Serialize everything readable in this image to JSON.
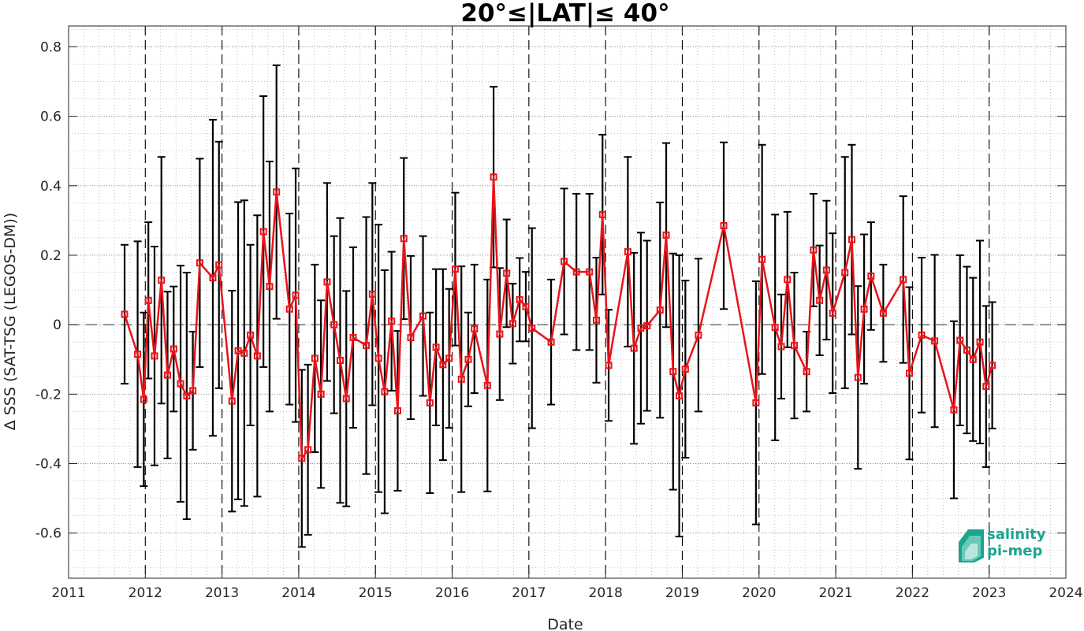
{
  "chart_data": {
    "type": "line",
    "title": "20°≤|LAT|≤ 40°",
    "xlabel": "Date",
    "ylabel": "Δ SSS (SAT-TSG (LEGOS-DM))",
    "xlim": [
      2011,
      2024
    ],
    "ylim": [
      -0.73,
      0.86
    ],
    "x_ticks": [
      "2011",
      "2012",
      "2013",
      "2014",
      "2015",
      "2016",
      "2017",
      "2018",
      "2019",
      "2020",
      "2021",
      "2022",
      "2023",
      "2024"
    ],
    "y_ticks": [
      "-0.6",
      "-0.4",
      "-0.2",
      "0",
      "0.2",
      "0.4",
      "0.6",
      "0.8"
    ],
    "grid": true,
    "year_dividers": [
      2012,
      2013,
      2014,
      2015,
      2016,
      2017,
      2018,
      2019,
      2020,
      2021,
      2022,
      2023
    ],
    "zero_line": 0,
    "colors": {
      "series": "#e8141b",
      "errorbar": "#000000",
      "grid": "#b4b4b4"
    },
    "series": [
      {
        "x": [
          2011.73,
          2011.9,
          2011.98,
          2012.04,
          2012.12,
          2012.21,
          2012.29,
          2012.37,
          2012.46,
          2012.54,
          2012.62,
          2012.71,
          2012.88,
          2012.96,
          2013.13,
          2013.21,
          2013.29,
          2013.37,
          2013.46,
          2013.54,
          2013.62,
          2013.71,
          2013.88,
          2013.96,
          2014.04,
          2014.12,
          2014.21,
          2014.29,
          2014.37,
          2014.46,
          2014.54,
          2014.62,
          2014.71,
          2014.88,
          2014.96,
          2015.04,
          2015.12,
          2015.21,
          2015.29,
          2015.37,
          2015.46,
          2015.62,
          2015.71,
          2015.79,
          2015.88,
          2015.96,
          2016.04,
          2016.12,
          2016.21,
          2016.29,
          2016.46,
          2016.54,
          2016.62,
          2016.71,
          2016.79,
          2016.88,
          2016.96,
          2017.04,
          2017.29,
          2017.46,
          2017.62,
          2017.79,
          2017.88,
          2017.96,
          2018.04,
          2018.29,
          2018.37,
          2018.46,
          2018.54,
          2018.71,
          2018.79,
          2018.88,
          2018.96,
          2019.04,
          2019.21,
          2019.54,
          2019.96,
          2020.04,
          2020.21,
          2020.29,
          2020.37,
          2020.46,
          2020.62,
          2020.71,
          2020.79,
          2020.88,
          2020.96,
          2021.12,
          2021.21,
          2021.29,
          2021.37,
          2021.46,
          2021.62,
          2021.88,
          2021.96,
          2022.12,
          2022.29,
          2022.54,
          2022.62,
          2022.71,
          2022.79,
          2022.88,
          2022.96,
          2023.04
        ],
        "y": [
          0.03,
          -0.085,
          -0.215,
          0.07,
          -0.09,
          0.128,
          -0.145,
          -0.07,
          -0.17,
          -0.205,
          -0.19,
          0.178,
          0.135,
          0.172,
          -0.22,
          -0.075,
          -0.082,
          -0.03,
          -0.09,
          0.268,
          0.11,
          0.382,
          0.045,
          0.085,
          -0.385,
          -0.36,
          -0.097,
          -0.2,
          0.123,
          0.0,
          -0.103,
          -0.213,
          -0.037,
          -0.06,
          0.088,
          -0.097,
          -0.193,
          0.01,
          -0.248,
          0.248,
          -0.037,
          0.025,
          -0.225,
          -0.065,
          -0.115,
          -0.097,
          0.16,
          -0.157,
          -0.1,
          -0.012,
          -0.175,
          0.425,
          -0.027,
          0.148,
          0.003,
          0.072,
          0.052,
          -0.01,
          -0.05,
          0.182,
          0.152,
          0.152,
          0.013,
          0.317,
          -0.117,
          0.21,
          -0.068,
          -0.01,
          -0.003,
          0.042,
          0.258,
          -0.135,
          -0.205,
          -0.128,
          -0.03,
          0.285,
          -0.225,
          0.188,
          -0.008,
          -0.063,
          0.13,
          -0.06,
          -0.135,
          0.215,
          0.07,
          0.157,
          0.033,
          0.15,
          0.245,
          -0.152,
          0.045,
          0.14,
          0.033,
          0.13,
          -0.14,
          -0.03,
          -0.047,
          -0.245,
          -0.045,
          -0.073,
          -0.1,
          -0.05,
          -0.178,
          -0.117
        ],
        "err": [
          0.2,
          0.325,
          0.25,
          0.225,
          0.315,
          0.355,
          0.24,
          0.18,
          0.34,
          0.355,
          0.17,
          0.3,
          0.455,
          0.355,
          0.318,
          0.428,
          0.44,
          0.26,
          0.405,
          0.39,
          0.36,
          0.365,
          0.275,
          0.365,
          0.255,
          0.245,
          0.27,
          0.27,
          0.285,
          0.255,
          0.41,
          0.31,
          0.26,
          0.37,
          0.32,
          0.385,
          0.35,
          0.2,
          0.23,
          0.232,
          0.235,
          0.23,
          0.26,
          0.225,
          0.275,
          0.2,
          0.22,
          0.325,
          0.135,
          0.185,
          0.305,
          0.26,
          0.19,
          0.155,
          0.115,
          0.12,
          0.1,
          0.288,
          0.18,
          0.21,
          0.225,
          0.225,
          0.18,
          0.23,
          0.16,
          0.273,
          0.275,
          0.275,
          0.245,
          0.31,
          0.265,
          0.34,
          0.405,
          0.255,
          0.22,
          0.24,
          0.35,
          0.33,
          0.325,
          0.15,
          0.195,
          0.21,
          0.115,
          0.162,
          0.158,
          0.2,
          0.23,
          0.333,
          0.273,
          0.263,
          0.215,
          0.155,
          0.14,
          0.24,
          0.248,
          0.223,
          0.248,
          0.255,
          0.245,
          0.24,
          0.235,
          0.292,
          0.232,
          0.182
        ]
      }
    ]
  },
  "logo": {
    "line1": "salinity",
    "line2": "pi-mep"
  }
}
